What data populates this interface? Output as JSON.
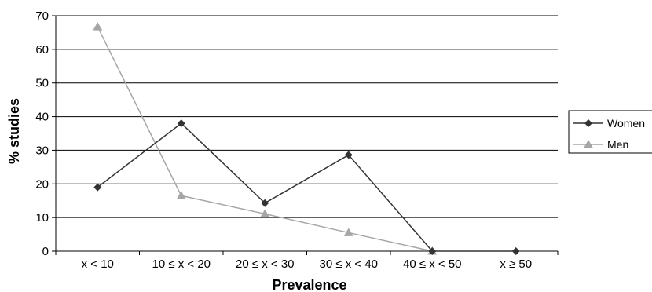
{
  "chart_data": {
    "type": "line",
    "categories": [
      "x < 10",
      "10 ≤ x < 20",
      "20 ≤ x < 30",
      "30 ≤ x < 40",
      "40 ≤ x < 50",
      "x ≥ 50"
    ],
    "series": [
      {
        "name": "Women",
        "values": [
          19,
          38,
          14.3,
          28.6,
          0,
          0
        ],
        "color": "#333333",
        "marker": "diamond"
      },
      {
        "name": "Men",
        "values": [
          66.7,
          16.5,
          11.1,
          5.5,
          0,
          null
        ],
        "color": "#a6a6a6",
        "marker": "triangle"
      }
    ],
    "title": "",
    "xlabel": "Prevalence",
    "ylabel": "% studies",
    "ylim": [
      0,
      70
    ],
    "yticks": [
      0,
      10,
      20,
      30,
      40,
      50,
      60,
      70
    ],
    "grid": true,
    "legend_position": "right"
  }
}
